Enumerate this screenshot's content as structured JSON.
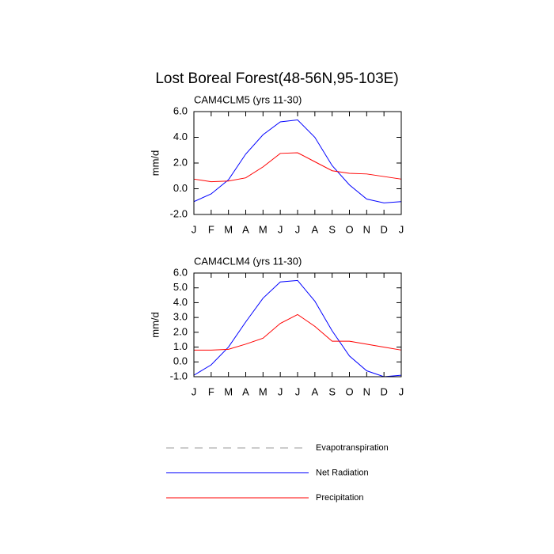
{
  "title": "Lost Boreal Forest(48-56N,95-103E)",
  "legend": [
    {
      "name": "Evapotranspiration",
      "color": "#999999",
      "dash": true
    },
    {
      "name": "Net Radiation",
      "color": "#0000ff",
      "dash": false
    },
    {
      "name": "Precipitation",
      "color": "#ff0000",
      "dash": false
    }
  ],
  "chart_data": [
    {
      "type": "line",
      "title": "CAM4CLM5 (yrs 11-30)",
      "ylabel": "mm/d",
      "categories": [
        "J",
        "F",
        "M",
        "A",
        "M",
        "J",
        "J",
        "A",
        "S",
        "O",
        "N",
        "D",
        "J"
      ],
      "ylim": [
        -2,
        6
      ],
      "yticks": [
        {
          "value": -2,
          "label": "-2.0"
        },
        {
          "value": 0,
          "label": "0.0"
        },
        {
          "value": 2,
          "label": "2.0"
        },
        {
          "value": 4,
          "label": "4.0"
        },
        {
          "value": 6,
          "label": "6.0"
        }
      ],
      "series": [
        {
          "name": "Net Radiation",
          "color": "#0000ff",
          "values": [
            -1.0,
            -0.4,
            0.7,
            2.7,
            4.2,
            5.2,
            5.35,
            4.0,
            1.8,
            0.3,
            -0.8,
            -1.1,
            -1.0
          ]
        },
        {
          "name": "Precipitation",
          "color": "#ff0000",
          "values": [
            0.75,
            0.55,
            0.6,
            0.85,
            1.7,
            2.75,
            2.8,
            2.1,
            1.4,
            1.2,
            1.15,
            0.95,
            0.75
          ]
        }
      ]
    },
    {
      "type": "line",
      "title": "CAM4CLM4 (yrs 11-30)",
      "ylabel": "mm/d",
      "categories": [
        "J",
        "F",
        "M",
        "A",
        "M",
        "J",
        "J",
        "A",
        "S",
        "O",
        "N",
        "D",
        "J"
      ],
      "ylim": [
        -1,
        6
      ],
      "yticks": [
        {
          "value": -1,
          "label": "-1.0"
        },
        {
          "value": 0,
          "label": "0.0"
        },
        {
          "value": 1,
          "label": "1.0"
        },
        {
          "value": 2,
          "label": "2.0"
        },
        {
          "value": 3,
          "label": "3.0"
        },
        {
          "value": 4,
          "label": "4.0"
        },
        {
          "value": 5,
          "label": "5.0"
        },
        {
          "value": 6,
          "label": "6.0"
        }
      ],
      "series": [
        {
          "name": "Net Radiation",
          "color": "#0000ff",
          "values": [
            -0.9,
            -0.2,
            1.0,
            2.7,
            4.3,
            5.4,
            5.5,
            4.1,
            2.1,
            0.4,
            -0.6,
            -1.0,
            -0.9
          ]
        },
        {
          "name": "Precipitation",
          "color": "#ff0000",
          "values": [
            0.8,
            0.8,
            0.85,
            1.2,
            1.6,
            2.6,
            3.2,
            2.4,
            1.4,
            1.4,
            1.2,
            1.0,
            0.8
          ]
        }
      ]
    }
  ]
}
